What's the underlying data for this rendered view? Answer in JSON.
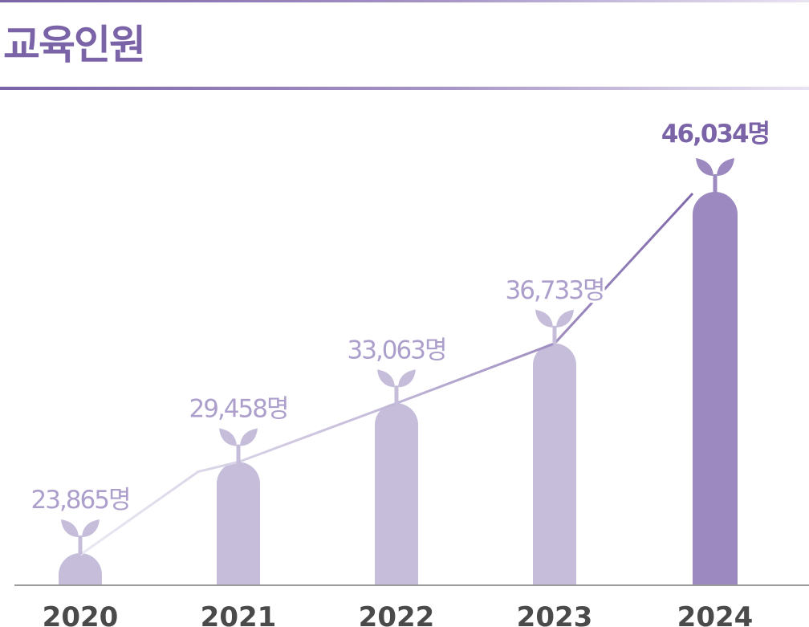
{
  "header": {
    "title": "교육인원"
  },
  "chart_data": {
    "type": "bar",
    "title": "교육인원",
    "categories": [
      "2020",
      "2021",
      "2022",
      "2023",
      "2024"
    ],
    "values": [
      23865,
      29458,
      33063,
      36733,
      46034
    ],
    "value_labels": [
      "23,865명",
      "29,458명",
      "33,063명",
      "36,733명",
      "46,034명"
    ],
    "unit": "명",
    "highlight_index": 4,
    "overlay": "line connecting bar tops",
    "grid": false,
    "legend": "none",
    "colors": {
      "accent": "#7b63a8",
      "bar": "#c5bdd9",
      "bar_highlight": "#9b89c0",
      "label": "#ad9fcc",
      "axis_text": "#4a4a4a",
      "baseline": "#9a9a9a"
    }
  }
}
